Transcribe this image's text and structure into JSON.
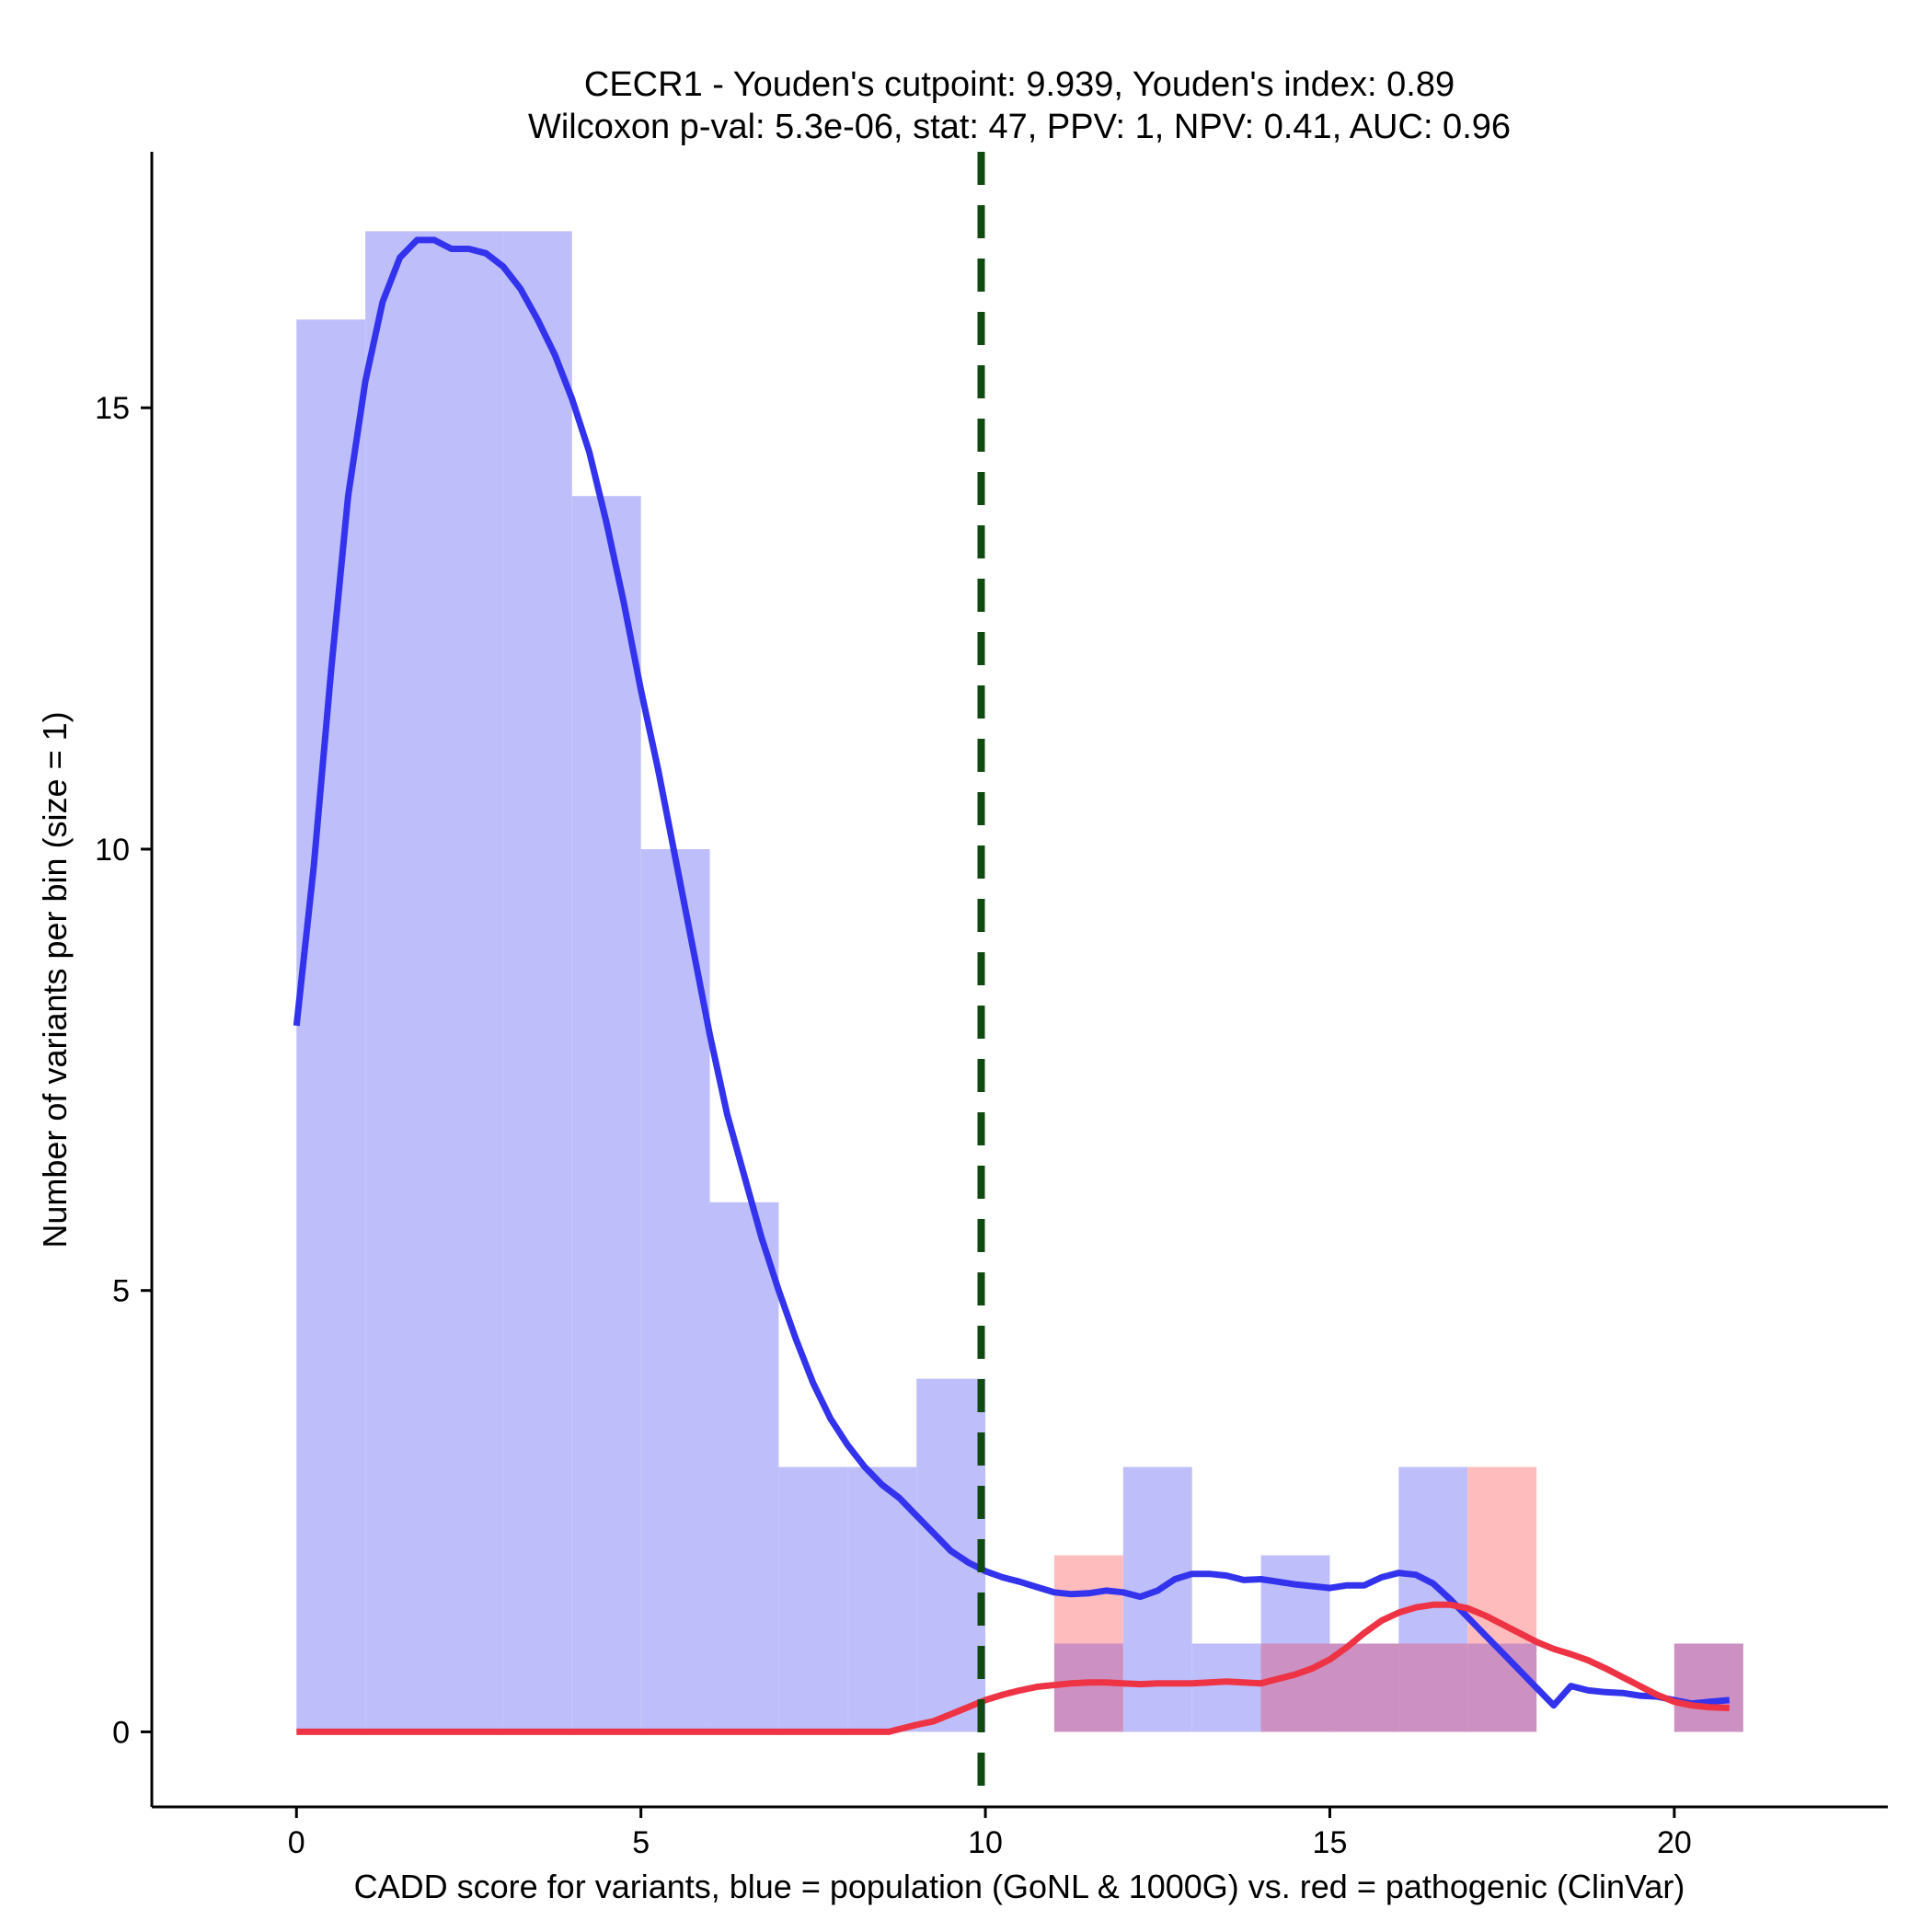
{
  "chart_data": {
    "type": "histogram",
    "title": "CECR1 - Youden's cutpoint: 9.939, Youden's index: 0.89",
    "subtitle": "Wilcoxon p-val: 5.3e-06, stat: 47, PPV: 1, NPV: 0.41, AUC: 0.96",
    "xlabel": "CADD score for variants, blue = population (GoNL & 1000G) vs. red = pathogenic (ClinVar)",
    "ylabel": "Number of variants per bin (size = 1)",
    "xlim": [
      -2.1,
      23.1
    ],
    "ylim": [
      -0.85,
      17.9
    ],
    "x_ticks": [
      0,
      5,
      10,
      15,
      20
    ],
    "y_ticks": [
      0,
      5,
      10,
      15
    ],
    "bin_size": 1,
    "cutpoint": 9.939,
    "colors": {
      "population_bar": "#bebefb",
      "pathogenic_bar": "#ffbcbc",
      "overlap_bar": "#cc91c2",
      "population_line": "#3333ee",
      "pathogenic_line": "#ee3344",
      "cutpoint_line": "#0f4a0f",
      "axis": "#000000"
    },
    "series": [
      {
        "id": "population",
        "bins": [
          {
            "x0": 0,
            "x1": 1,
            "count": 16
          },
          {
            "x0": 1,
            "x1": 2,
            "count": 17
          },
          {
            "x0": 2,
            "x1": 3,
            "count": 17
          },
          {
            "x0": 3,
            "x1": 4,
            "count": 17
          },
          {
            "x0": 4,
            "x1": 5,
            "count": 14
          },
          {
            "x0": 5,
            "x1": 6,
            "count": 10
          },
          {
            "x0": 6,
            "x1": 7,
            "count": 6
          },
          {
            "x0": 7,
            "x1": 8,
            "count": 3
          },
          {
            "x0": 8,
            "x1": 9,
            "count": 3
          },
          {
            "x0": 9,
            "x1": 10,
            "count": 4
          },
          {
            "x0": 12,
            "x1": 13,
            "count": 3
          },
          {
            "x0": 13,
            "x1": 14,
            "count": 1
          },
          {
            "x0": 14,
            "x1": 15,
            "count": 2
          },
          {
            "x0": 15,
            "x1": 16,
            "count": 1
          },
          {
            "x0": 16,
            "x1": 17,
            "count": 3
          },
          {
            "x0": 17,
            "x1": 18,
            "count": 1
          },
          {
            "x0": 20,
            "x1": 21,
            "count": 1
          }
        ],
        "density_curve": [
          [
            0.0,
            8.0
          ],
          [
            0.25,
            9.8
          ],
          [
            0.5,
            12.0
          ],
          [
            0.75,
            14.0
          ],
          [
            1.0,
            15.3
          ],
          [
            1.25,
            16.2
          ],
          [
            1.5,
            16.7
          ],
          [
            1.75,
            16.9
          ],
          [
            2.0,
            16.9
          ],
          [
            2.25,
            16.8
          ],
          [
            2.5,
            16.8
          ],
          [
            2.75,
            16.75
          ],
          [
            3.0,
            16.6
          ],
          [
            3.25,
            16.35
          ],
          [
            3.5,
            16.0
          ],
          [
            3.75,
            15.6
          ],
          [
            4.0,
            15.1
          ],
          [
            4.25,
            14.5
          ],
          [
            4.5,
            13.7
          ],
          [
            4.75,
            12.8
          ],
          [
            5.0,
            11.8
          ],
          [
            5.25,
            10.9
          ],
          [
            5.5,
            9.9
          ],
          [
            5.75,
            8.9
          ],
          [
            6.0,
            7.9
          ],
          [
            6.25,
            7.0
          ],
          [
            6.5,
            6.3
          ],
          [
            6.75,
            5.6
          ],
          [
            7.0,
            5.0
          ],
          [
            7.25,
            4.45
          ],
          [
            7.5,
            3.95
          ],
          [
            7.75,
            3.55
          ],
          [
            8.0,
            3.25
          ],
          [
            8.25,
            3.0
          ],
          [
            8.5,
            2.8
          ],
          [
            8.75,
            2.65
          ],
          [
            9.0,
            2.45
          ],
          [
            9.25,
            2.25
          ],
          [
            9.5,
            2.05
          ],
          [
            9.75,
            1.92
          ],
          [
            10.0,
            1.82
          ],
          [
            10.25,
            1.75
          ],
          [
            10.5,
            1.7
          ],
          [
            10.75,
            1.64
          ],
          [
            11.0,
            1.58
          ],
          [
            11.25,
            1.56
          ],
          [
            11.5,
            1.57
          ],
          [
            11.75,
            1.6
          ],
          [
            12.0,
            1.58
          ],
          [
            12.25,
            1.53
          ],
          [
            12.5,
            1.6
          ],
          [
            12.75,
            1.73
          ],
          [
            13.0,
            1.79
          ],
          [
            13.25,
            1.79
          ],
          [
            13.5,
            1.77
          ],
          [
            13.75,
            1.72
          ],
          [
            14.0,
            1.73
          ],
          [
            14.25,
            1.7
          ],
          [
            14.5,
            1.67
          ],
          [
            14.75,
            1.65
          ],
          [
            15.0,
            1.63
          ],
          [
            15.25,
            1.66
          ],
          [
            15.5,
            1.66
          ],
          [
            15.75,
            1.75
          ],
          [
            16.0,
            1.8
          ],
          [
            16.25,
            1.78
          ],
          [
            16.5,
            1.68
          ],
          [
            16.75,
            1.5
          ],
          [
            17.0,
            1.3
          ],
          [
            17.25,
            1.1
          ],
          [
            17.5,
            0.9
          ],
          [
            17.75,
            0.7
          ],
          [
            18.0,
            0.5
          ],
          [
            18.25,
            0.3
          ],
          [
            18.5,
            0.52
          ],
          [
            18.75,
            0.47
          ],
          [
            19.0,
            0.45
          ],
          [
            19.25,
            0.44
          ],
          [
            19.5,
            0.41
          ],
          [
            19.75,
            0.4
          ],
          [
            20.0,
            0.36
          ],
          [
            20.25,
            0.32
          ],
          [
            20.5,
            0.34
          ],
          [
            20.8,
            0.36
          ]
        ]
      },
      {
        "id": "pathogenic",
        "bins": [
          {
            "x0": 11,
            "x1": 12,
            "count": 2
          },
          {
            "x0": 14,
            "x1": 15,
            "count": 1
          },
          {
            "x0": 15,
            "x1": 16,
            "count": 1
          },
          {
            "x0": 16,
            "x1": 17,
            "count": 1
          },
          {
            "x0": 17,
            "x1": 18,
            "count": 3
          },
          {
            "x0": 20,
            "x1": 21,
            "count": 1
          }
        ],
        "density_curve": [
          [
            0.0,
            0.0
          ],
          [
            2.0,
            0.0
          ],
          [
            4.0,
            0.0
          ],
          [
            6.0,
            0.0
          ],
          [
            8.0,
            0.0
          ],
          [
            8.6,
            0.0
          ],
          [
            8.85,
            0.05
          ],
          [
            9.0,
            0.08
          ],
          [
            9.25,
            0.12
          ],
          [
            9.5,
            0.2
          ],
          [
            9.75,
            0.28
          ],
          [
            10.0,
            0.36
          ],
          [
            10.25,
            0.42
          ],
          [
            10.5,
            0.47
          ],
          [
            10.75,
            0.51
          ],
          [
            11.0,
            0.53
          ],
          [
            11.25,
            0.55
          ],
          [
            11.5,
            0.56
          ],
          [
            11.75,
            0.56
          ],
          [
            12.0,
            0.55
          ],
          [
            12.25,
            0.54
          ],
          [
            12.5,
            0.55
          ],
          [
            12.75,
            0.55
          ],
          [
            13.0,
            0.55
          ],
          [
            13.25,
            0.56
          ],
          [
            13.5,
            0.57
          ],
          [
            13.75,
            0.56
          ],
          [
            14.0,
            0.55
          ],
          [
            14.25,
            0.6
          ],
          [
            14.5,
            0.65
          ],
          [
            14.75,
            0.72
          ],
          [
            15.0,
            0.82
          ],
          [
            15.25,
            0.96
          ],
          [
            15.5,
            1.12
          ],
          [
            15.75,
            1.26
          ],
          [
            16.0,
            1.35
          ],
          [
            16.25,
            1.41
          ],
          [
            16.5,
            1.44
          ],
          [
            16.75,
            1.44
          ],
          [
            17.0,
            1.4
          ],
          [
            17.25,
            1.32
          ],
          [
            17.5,
            1.22
          ],
          [
            17.75,
            1.12
          ],
          [
            18.0,
            1.02
          ],
          [
            18.25,
            0.94
          ],
          [
            18.5,
            0.88
          ],
          [
            18.75,
            0.81
          ],
          [
            19.0,
            0.72
          ],
          [
            19.25,
            0.62
          ],
          [
            19.5,
            0.52
          ],
          [
            19.75,
            0.42
          ],
          [
            20.0,
            0.34
          ],
          [
            20.25,
            0.3
          ],
          [
            20.5,
            0.28
          ],
          [
            20.8,
            0.27
          ]
        ]
      }
    ]
  }
}
